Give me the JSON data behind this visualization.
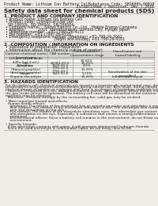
{
  "bg_color": "#f0ede8",
  "header_left": "Product Name: Lithium Ion Battery Cell",
  "header_right_line1": "Substance Code: SB26005-00010",
  "header_right_line2": "Established / Revision: Dec.7.2016",
  "title": "Safety data sheet for chemical products (SDS)",
  "section1_title": "1. PRODUCT AND COMPANY IDENTIFICATION",
  "section1_lines": [
    "• Product name: Lithium Ion Battery Cell",
    "• Product code: Cylindrical-type cell",
    "  SB-18650L, SB-18650L, SB-18650A",
    "• Company name:    Sanyo Electric Co., Ltd.,  Mobile Energy Company",
    "• Address:           2001  Kamimunakan, Sumoto-City, Hyogo, Japan",
    "• Telephone number:  +81-(799)-26-4111",
    "• Fax number:  +81-(799)-26-4120",
    "• Emergency telephone number (Weekday) +81-799-26-3062",
    "                                         (Night and holiday) +81-799-26-4101"
  ],
  "section2_title": "2. COMPOSITION / INFORMATION ON INGREDIENTS",
  "section2_intro": "• Substance or preparation: Preparation",
  "section2_sub": "• Information about the chemical nature of product:",
  "table_headers": [
    "Common chemical name",
    "CAS number",
    "Concentration /\nConcentration range",
    "Classification and\nhazard labeling"
  ],
  "table_col1_sub": "Several name",
  "table_rows": [
    [
      "Lithium cobalt oxide\n(LiMn-Co/LiCoO₂)",
      "-",
      "30-60%",
      "-"
    ],
    [
      "Iron",
      "26389-59-9",
      "15-25%",
      "-"
    ],
    [
      "Aluminium",
      "7429-90-5",
      "2-5%",
      "-"
    ],
    [
      "Graphite\n(Natural graphite)\n(Artificial graphite)",
      "7782-42-5\n7782-44-2",
      "10-25%",
      "-"
    ],
    [
      "Copper",
      "7440-50-8",
      "5-15%",
      "Sensitization of the skin\ngroup No.2"
    ],
    [
      "Organic electrolyte",
      "-",
      "10-20%",
      "Inflammable liquid"
    ]
  ],
  "section3_title": "3. HAZARDS IDENTIFICATION",
  "section3_body": [
    "For the battery cell, chemical materials are stored in a hermetically-sealed metal case, designed to withstand",
    "temperatures and pressures-accumulations during normal use. As a result, during normal use, there is no",
    "physical danger of ignition or explosion and there is no danger of hazardous materials leakage.",
    "  However, if exposed to a fire, added mechanical shocks, decomposed, where electric current dry misuse,",
    "the gas inside cannot be operated. The battery cell case will be breached at the extreme, hazardous",
    "materials may be released.",
    "  Moreover, if heated strongly by the surrounding fire, solid gas may be emitted.",
    "",
    "• Most important hazard and effects:",
    "  Human health effects:",
    "    Inhalation: The release of the electrolyte has an anesthesia-action and stimulates a respiratory tract.",
    "    Skin contact: The release of the electrolyte stimulates a skin. The electrolyte skin contact causes a",
    "    sore and stimulation on the skin.",
    "    Eye contact: The release of the electrolyte stimulates eyes. The electrolyte eye contact causes a sore",
    "    and stimulation on the eye. Especially, a substance that causes a strong inflammation of the eye is",
    "    contained.",
    "    Environmental effects: Since a battery cell remains in the environment, do not throw out it into the",
    "    environment.",
    "",
    "• Specific hazards:",
    "  If the electrolyte contacts with water, it will generate detrimental hydrogen fluoride.",
    "  Since the used electrolyte is inflammable liquid, do not bring close to fire."
  ],
  "text_color": "#1a1a1a",
  "line_color": "#888888",
  "table_border_color": "#999999",
  "header_fontsize": 3.5,
  "title_fontsize": 5.2,
  "section_title_fontsize": 4.2,
  "body_fontsize": 3.4,
  "table_fontsize": 3.0
}
